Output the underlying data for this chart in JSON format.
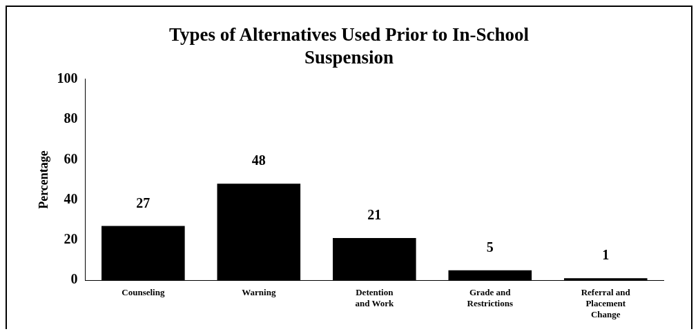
{
  "chart_data": {
    "type": "bar",
    "title": "Types of Alternatives Used Prior to In-School Suspension",
    "ylabel": "Percentage",
    "categories": [
      "Counseling",
      "Warning",
      "Detention and Work",
      "Grade and Restrictions",
      "Referral and Placement Change"
    ],
    "values": [
      27,
      48,
      21,
      5,
      1
    ],
    "color": "#000000",
    "ylim": [
      0,
      100
    ],
    "yticks": [
      0,
      20,
      40,
      60,
      80,
      100
    ],
    "data_labels": true,
    "grid": false,
    "legend": false
  }
}
